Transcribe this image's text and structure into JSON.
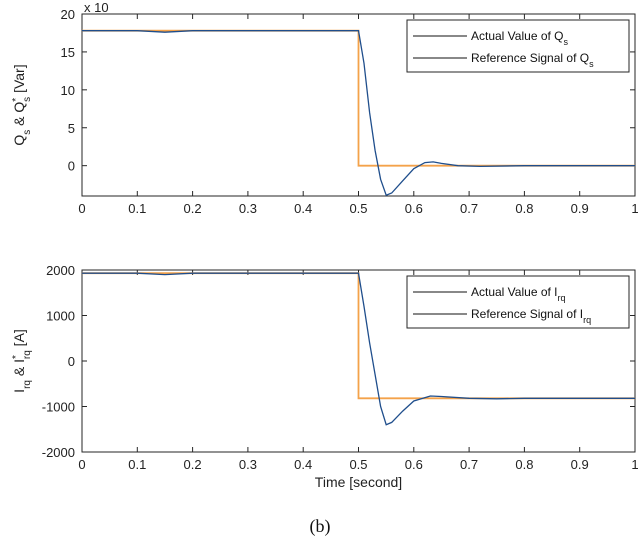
{
  "caption": "(b)",
  "chart_data": [
    {
      "type": "line",
      "ylabel": {
        "main": "Q",
        "sub1": "s",
        "amp": " & Q",
        "sup": "*",
        "sub2": "s",
        "unit": " [Var]"
      },
      "scale_note": "x 10",
      "xlim": [
        0,
        1
      ],
      "ylim": [
        -4,
        20
      ],
      "xticks": [
        "0",
        "0.1",
        "0.2",
        "0.3",
        "0.4",
        "0.5",
        "0.6",
        "0.7",
        "0.8",
        "0.9",
        "1"
      ],
      "yticks": [
        {
          "v": 0,
          "label": "0"
        },
        {
          "v": 5,
          "label": "5"
        },
        {
          "v": 10,
          "label": "10"
        },
        {
          "v": 15,
          "label": "15"
        },
        {
          "v": 20,
          "label": "20"
        }
      ],
      "legend_position": "top-right",
      "series": [
        {
          "name": "Actual Value of Q",
          "name_sub": "s",
          "color": "#1f4e8c",
          "style": "actual",
          "points": [
            [
              0,
              17.8
            ],
            [
              0.1,
              17.8
            ],
            [
              0.15,
              17.6
            ],
            [
              0.2,
              17.8
            ],
            [
              0.3,
              17.8
            ],
            [
              0.4,
              17.8
            ],
            [
              0.5,
              17.8
            ],
            [
              0.51,
              13.5
            ],
            [
              0.52,
              7.0
            ],
            [
              0.53,
              2.0
            ],
            [
              0.54,
              -1.8
            ],
            [
              0.55,
              -3.9
            ],
            [
              0.56,
              -3.6
            ],
            [
              0.58,
              -2.0
            ],
            [
              0.6,
              -0.4
            ],
            [
              0.62,
              0.4
            ],
            [
              0.635,
              0.5
            ],
            [
              0.65,
              0.3
            ],
            [
              0.68,
              0.0
            ],
            [
              0.72,
              -0.1
            ],
            [
              0.8,
              0.0
            ],
            [
              0.9,
              0.0
            ],
            [
              1.0,
              0.0
            ]
          ]
        },
        {
          "name": "Reference Signal of Q",
          "name_sub": "s",
          "color": "#f4a24a",
          "style": "reference",
          "points": [
            [
              0,
              17.8
            ],
            [
              0.5,
              17.8
            ],
            [
              0.5,
              0
            ],
            [
              1.0,
              0
            ]
          ]
        }
      ]
    },
    {
      "type": "line",
      "ylabel": {
        "main": "I",
        "sub1": "rq",
        "amp": " & I",
        "sup": "*",
        "sub2": "rq",
        "unit": " [A]"
      },
      "xlabel": "Time [second]",
      "xlim": [
        0,
        1
      ],
      "ylim": [
        -2000,
        2000
      ],
      "xticks": [
        "0",
        "0.1",
        "0.2",
        "0.3",
        "0.4",
        "0.5",
        "0.6",
        "0.7",
        "0.8",
        "0.9",
        "1"
      ],
      "yticks": [
        {
          "v": -2000,
          "label": "-2000"
        },
        {
          "v": -1000,
          "label": "-1000"
        },
        {
          "v": 0,
          "label": "0"
        },
        {
          "v": 1000,
          "label": "1000"
        },
        {
          "v": 2000,
          "label": "2000"
        }
      ],
      "legend_position": "top-right",
      "series": [
        {
          "name": "Actual Value of I",
          "name_sub": "rq",
          "color": "#1f4e8c",
          "style": "actual",
          "points": [
            [
              0,
              1930
            ],
            [
              0.1,
              1930
            ],
            [
              0.15,
              1900
            ],
            [
              0.2,
              1930
            ],
            [
              0.3,
              1930
            ],
            [
              0.4,
              1930
            ],
            [
              0.5,
              1930
            ],
            [
              0.51,
              1200
            ],
            [
              0.52,
              400
            ],
            [
              0.53,
              -300
            ],
            [
              0.54,
              -1000
            ],
            [
              0.55,
              -1400
            ],
            [
              0.56,
              -1350
            ],
            [
              0.58,
              -1100
            ],
            [
              0.6,
              -880
            ],
            [
              0.63,
              -770
            ],
            [
              0.65,
              -780
            ],
            [
              0.7,
              -820
            ],
            [
              0.75,
              -830
            ],
            [
              0.8,
              -820
            ],
            [
              0.9,
              -820
            ],
            [
              1.0,
              -820
            ]
          ]
        },
        {
          "name": "Reference Signal of I",
          "name_sub": "rq",
          "color": "#f4a24a",
          "style": "reference",
          "points": [
            [
              0,
              1930
            ],
            [
              0.5,
              1930
            ],
            [
              0.5,
              -820
            ],
            [
              1.0,
              -820
            ]
          ]
        }
      ]
    }
  ]
}
